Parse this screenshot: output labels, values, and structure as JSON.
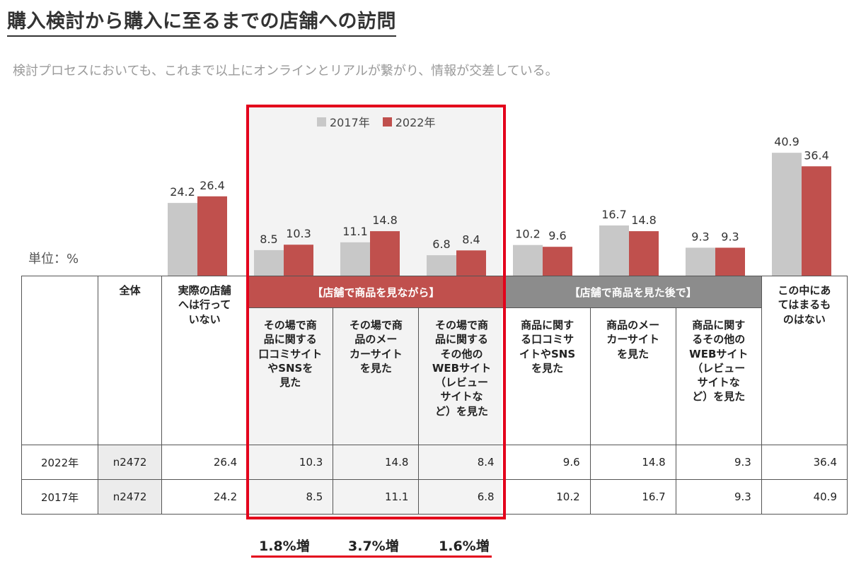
{
  "title": "購入検討から購入に至るまでの店舗への訪問",
  "subtitle": "検討プロセスにおいても、これまで以上にオンラインとリアルが繋がり、情報が交差している。",
  "unit_label": "単位：%",
  "colors": {
    "y2017": "#c8c8c8",
    "y2022": "#c0504d",
    "highlight": "#e3001b",
    "group_gray": "#8c8c8c"
  },
  "chart_data": {
    "type": "bar",
    "categories": [
      "実際の店舗へは行っていない",
      "その場で商品に関する口コミサイトやSNSを見た",
      "その場で商品のメーカーサイトを見た",
      "その場で商品に関するその他のWEBサイト（レビューサイトなど）を見た",
      "商品に関する口コミサイトやSNSを見た",
      "商品のメーカーサイトを見た",
      "商品に関するその他のWEBサイト（レビューサイトなど）を見た",
      "この中にあてはまるものはない"
    ],
    "series": [
      {
        "name": "2017年",
        "values": [
          24.2,
          8.5,
          11.1,
          6.8,
          10.2,
          16.7,
          9.3,
          40.9
        ]
      },
      {
        "name": "2022年",
        "values": [
          26.4,
          10.3,
          14.8,
          8.4,
          9.6,
          14.8,
          9.3,
          36.4
        ]
      }
    ],
    "value_labels": {
      "2017年": [
        "24.2",
        "8.5",
        "11.1",
        "6.8",
        "10.2",
        "16.7",
        "9.3",
        "40.9"
      ],
      "2022年": [
        "26.4",
        "10.3",
        "14.8",
        "8.4",
        "9.6",
        "14.8",
        "9.3",
        "36.4"
      ]
    },
    "ylim": [
      0,
      45
    ],
    "legend": "top-center",
    "grid": false
  },
  "table": {
    "header_total": "全体",
    "header_not_visited": [
      "実際の店舗",
      "へは行って",
      "いない"
    ],
    "group_while": "【店舗で商品を見ながら】",
    "group_after": "【店舗で商品を見た後で】",
    "header_none": [
      "この中にあ",
      "てはまるも",
      "のはない"
    ],
    "sub_headers": [
      [
        "その場で商",
        "品に関する",
        "口コミサイト",
        "やSNSを",
        "見た"
      ],
      [
        "その場で商",
        "品のメー",
        "カーサイト",
        "を見た"
      ],
      [
        "その場で商",
        "品に関する",
        "その他の",
        "WEBサイト",
        "（レビュー",
        "サイトな",
        "ど）を見た"
      ],
      [
        "商品に関す",
        "る口コミサ",
        "イトやSNS",
        "を見た"
      ],
      [
        "商品のメー",
        "カーサイト",
        "を見た"
      ],
      [
        "商品に関す",
        "るその他の",
        "WEBサイト",
        "（レビュー",
        "サイトな",
        "ど）を見た"
      ]
    ],
    "rows": [
      {
        "label": "2022年",
        "n": "n2472",
        "values": [
          "26.4",
          "10.3",
          "14.8",
          "8.4",
          "9.6",
          "14.8",
          "9.3",
          "36.4"
        ]
      },
      {
        "label": "2017年",
        "n": "n2472",
        "values": [
          "24.2",
          "8.5",
          "11.1",
          "6.8",
          "10.2",
          "16.7",
          "9.3",
          "40.9"
        ]
      }
    ]
  },
  "increases": [
    "1.8%増",
    "3.7%増",
    "1.6%増"
  ]
}
